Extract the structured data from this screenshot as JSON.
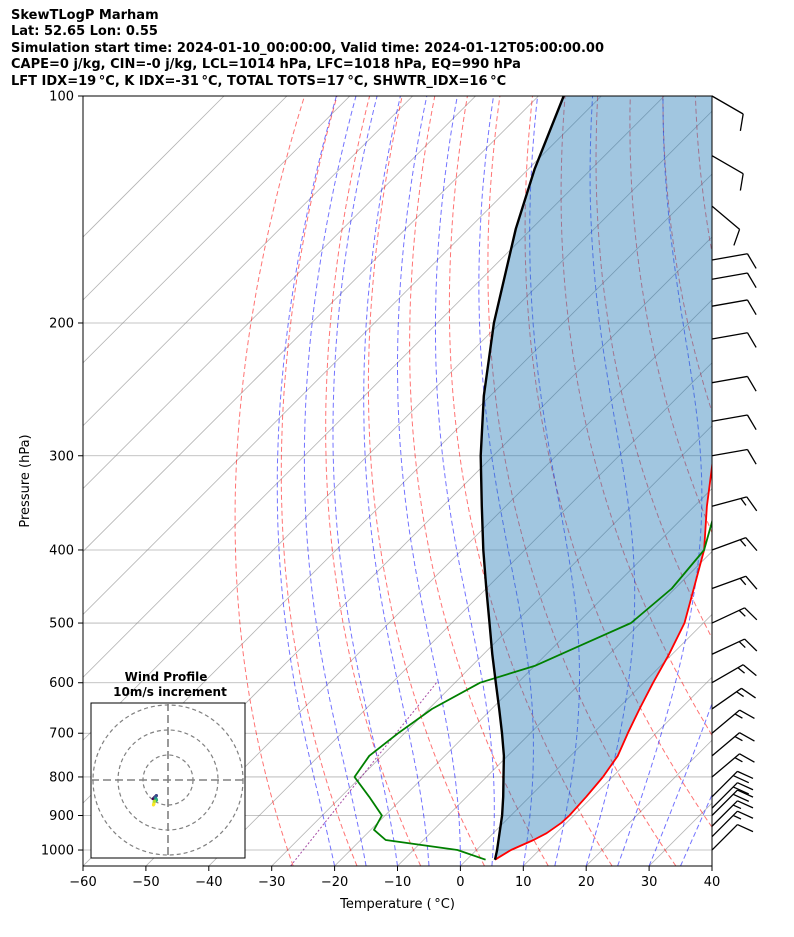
{
  "header": {
    "line1": "SkewTLogP Marham",
    "line2": "Lat: 52.65   Lon: 0.55",
    "line3": "Simulation start time: 2024-01-10_00:00:00, Valid time: 2024-01-12T05:00:00.00",
    "line4": "CAPE=0 j/kg, CIN=-0 j/kg, LCL=1014 hPa, LFC=1018 hPa, EQ=990 hPa",
    "line5": "LFT IDX=19 °C, K IDX=-31 °C, TOTAL TOTS=17 °C, SHWTR_IDX=16 °C"
  },
  "chart_data": {
    "type": "line",
    "chart_kind": "skew-T log-P diagram",
    "xlabel": "Temperature ( °C)",
    "ylabel": "Pressure (hPa)",
    "xlim": [
      -60,
      40
    ],
    "ylim": [
      1050,
      100
    ],
    "y_scale": "log",
    "x_ticks": [
      -60,
      -50,
      -40,
      -30,
      -20,
      -10,
      0,
      10,
      20,
      30,
      40
    ],
    "x_tick_labels": [
      "−60",
      "−50",
      "−40",
      "−30",
      "−20",
      "−10",
      "0",
      "10",
      "20",
      "30",
      "40"
    ],
    "y_ticks": [
      1000,
      900,
      800,
      700,
      600,
      500,
      400,
      300,
      200,
      100
    ],
    "y_tick_labels": [
      "1000",
      "900",
      "800",
      "700",
      "600",
      "500",
      "400",
      "300",
      "200",
      "100"
    ],
    "grid": true,
    "series": [
      {
        "role": "temperature",
        "color": "#ff0000",
        "pressure_hpa": [
          1030,
          1000,
          970,
          950,
          920,
          900,
          850,
          800,
          750,
          700,
          650,
          600,
          550,
          500,
          450,
          400,
          350,
          300,
          250,
          220,
          200,
          190,
          180,
          170,
          160,
          150,
          140,
          130,
          125,
          120,
          110,
          100
        ],
        "temp_c": [
          4.5,
          5.5,
          7.5,
          8.5,
          9.2,
          9.3,
          9.0,
          8.5,
          7.5,
          5.5,
          3.5,
          1.5,
          -0.5,
          -3.0,
          -7.0,
          -11.5,
          -18.0,
          -25.0,
          -33.5,
          -38.5,
          -41.0,
          -37.0,
          -33.5,
          -31.5,
          -26.5,
          -20.0,
          -14.0,
          -10.5,
          -9.0,
          -7.0,
          -3.5,
          1.5
        ]
      },
      {
        "role": "dewpoint",
        "color": "#008000",
        "pressure_hpa": [
          1030,
          1000,
          970,
          940,
          900,
          850,
          800,
          750,
          700,
          650,
          600,
          570,
          540,
          500,
          450,
          400,
          350,
          320,
          300,
          280,
          260,
          240,
          220,
          200,
          180,
          165,
          155,
          145,
          130,
          110,
          100
        ],
        "temp_c": [
          3.0,
          -3.0,
          -16.0,
          -19.5,
          -20.5,
          -25.5,
          -31.0,
          -32.0,
          -31.0,
          -29.5,
          -26.0,
          -20.0,
          -16.5,
          -11.5,
          -10.5,
          -11.5,
          -16.5,
          -21.0,
          -23.5,
          -25.0,
          -27.5,
          -30.0,
          -36.0,
          -44.5,
          -45.0,
          -40.5,
          -34.5,
          -34.0,
          -29.0,
          -19.5,
          -13.0
        ]
      },
      {
        "role": "parcel path",
        "color": "#000000",
        "pressure_hpa": [
          1030,
          1000,
          950,
          900,
          850,
          800,
          750,
          700,
          650,
          600,
          550,
          500,
          450,
          400,
          350,
          300,
          250,
          200,
          150,
          125,
          100
        ],
        "temp_c": [
          4.5,
          3.3,
          1.0,
          -1.4,
          -4.2,
          -7.3,
          -10.6,
          -14.5,
          -18.8,
          -23.5,
          -28.6,
          -34.0,
          -40.0,
          -46.6,
          -53.8,
          -62.0,
          -71.0,
          -81.0,
          -92.5,
          -99.0,
          -106.0
        ]
      }
    ],
    "reference_lines": {
      "dry_adiabat_color": "#ff0000",
      "moist_adiabat_color": "#0000ff",
      "mixing_ratio_color": "#800080",
      "isotherm_color": "#808080"
    },
    "wind_barbs": {
      "pressure_hpa": [
        100,
        120,
        140,
        165,
        175,
        190,
        210,
        240,
        270,
        300,
        350,
        400,
        450,
        500,
        550,
        600,
        650,
        700,
        750,
        800,
        850,
        880,
        900,
        930,
        960,
        1000
      ],
      "speed_kt": [
        10,
        10,
        10,
        10,
        10,
        10,
        10,
        10,
        10,
        10,
        15,
        15,
        15,
        15,
        15,
        15,
        15,
        15,
        15,
        15,
        20,
        20,
        20,
        15,
        15,
        10
      ],
      "dir_deg": [
        300,
        300,
        310,
        260,
        260,
        260,
        260,
        260,
        260,
        260,
        255,
        250,
        250,
        245,
        245,
        240,
        235,
        230,
        230,
        230,
        225,
        225,
        225,
        225,
        225,
        225
      ]
    },
    "hodograph": {
      "title_line1": "Wind Profile",
      "title_line2": "10m/s increment"
    }
  }
}
